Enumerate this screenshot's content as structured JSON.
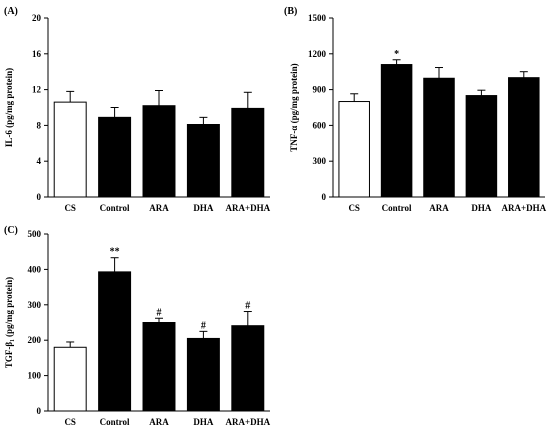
{
  "chart_data": [
    {
      "type": "bar",
      "panel_label": "(A)",
      "ylabel": "IL-6  (pg/mg protein)",
      "ylim": [
        0,
        20
      ],
      "yticks": [
        0,
        4,
        8,
        12,
        16,
        20
      ],
      "categories": [
        "CS",
        "Control",
        "ARA",
        "DHA",
        "ARA+DHA"
      ],
      "values": [
        10.6,
        8.9,
        10.2,
        8.1,
        9.9
      ],
      "errors": [
        1.2,
        1.1,
        1.7,
        0.8,
        1.8
      ],
      "fills": [
        "#ffffff",
        "#000000",
        "#000000",
        "#000000",
        "#000000"
      ],
      "annotations": [
        "",
        "",
        "",
        "",
        ""
      ]
    },
    {
      "type": "bar",
      "panel_label": "(B)",
      "ylabel": "TNF-α  (pg/mg protein)",
      "ylim": [
        0,
        1500
      ],
      "yticks": [
        0,
        300,
        600,
        900,
        1200,
        1500
      ],
      "categories": [
        "CS",
        "Control",
        "ARA",
        "DHA",
        "ARA+DHA"
      ],
      "values": [
        800,
        1110,
        995,
        850,
        1000
      ],
      "errors": [
        65,
        40,
        90,
        45,
        50
      ],
      "fills": [
        "#ffffff",
        "#000000",
        "#000000",
        "#000000",
        "#000000"
      ],
      "annotations": [
        "",
        "*",
        "",
        "",
        ""
      ]
    },
    {
      "type": "bar",
      "panel_label": "(C)",
      "ylabel": "TGF-β₁  (pg/mg protein)",
      "ylim": [
        0,
        500
      ],
      "yticks": [
        0,
        100,
        200,
        300,
        400,
        500
      ],
      "categories": [
        "CS",
        "Control",
        "ARA",
        "DHA",
        "ARA+DHA"
      ],
      "values": [
        180,
        393,
        250,
        205,
        241
      ],
      "errors": [
        15,
        40,
        12,
        20,
        40
      ],
      "fills": [
        "#ffffff",
        "#000000",
        "#000000",
        "#000000",
        "#000000"
      ],
      "annotations": [
        "",
        "**",
        "#",
        "#",
        "#"
      ]
    }
  ]
}
